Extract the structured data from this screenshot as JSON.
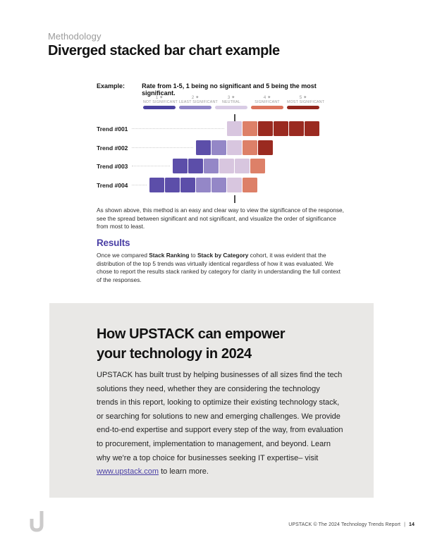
{
  "header": {
    "eyebrow": "Methodology",
    "title": "Diverged stacked bar chart example"
  },
  "chart": {
    "example_label": "Example:",
    "example_text": "Rate from 1-5, 1 being no significant and 5 being the most significant.",
    "legend": [
      {
        "number": "1",
        "symbol": "✦",
        "label": "NOT SIGNIFICANT",
        "color": "#4A41A0"
      },
      {
        "number": "2",
        "symbol": "✦",
        "label": "LEAST SIGNIFICANT",
        "color": "#8F84C6"
      },
      {
        "number": "3",
        "symbol": "✦",
        "label": "NEUTRAL",
        "color": "#D9CCE5"
      },
      {
        "number": "4",
        "symbol": "✦",
        "label": "SIGNIFICANT",
        "color": "#DB745C"
      },
      {
        "number": "5",
        "symbol": "✦",
        "label": "MOST SIGNIFICANT",
        "color": "#93261D"
      }
    ]
  },
  "chart_data": {
    "type": "bar",
    "subtype": "diverging_stacked",
    "title": "Diverged stacked bar chart example",
    "categories": [
      "Trend #001",
      "Trend #002",
      "Trend #003",
      "Trend #004"
    ],
    "series": [
      {
        "name": "1 Not Significant",
        "rating": 1,
        "color": "#5C4EA9",
        "values": [
          0,
          1,
          2,
          3
        ]
      },
      {
        "name": "2 Least Significant",
        "rating": 2,
        "color": "#9487C7",
        "values": [
          0,
          1,
          1,
          2
        ]
      },
      {
        "name": "3 Neutral",
        "rating": 3,
        "color": "#D8C6DF",
        "values": [
          1,
          1,
          2,
          1
        ]
      },
      {
        "name": "4 Significant",
        "rating": 4,
        "color": "#DD8068",
        "values": [
          1,
          1,
          1,
          1
        ]
      },
      {
        "name": "5 Most Significant",
        "rating": 5,
        "color": "#9A2A20",
        "values": [
          4,
          1,
          0,
          0
        ]
      }
    ],
    "units": "response blocks (1 block = 1 unit)",
    "legend_position": "top",
    "note": "Neutral blocks straddle the central divergence axis; ratings 1-2 extend left, ratings 4-5 extend right."
  },
  "caption": {
    "text": "As shown above, this method is an easy and clear way to view the significance of the response, see the spread between significant and not significant, and visualize the order of significance from most to least."
  },
  "results": {
    "heading": "Results",
    "p1": "Once we compared ",
    "bold1": "Stack Ranking",
    "p2": " to ",
    "bold2": "Stack by Category",
    "p3": " cohort, it was evident that the distribution of the top 5 trends was virtually identical regardless of how it was evaluated. We chose to report the results stack ranked by category for clarity in understanding the full context of the responses."
  },
  "promo": {
    "heading_line1": "How UPSTACK can empower",
    "heading_line2": "your technology in 2024",
    "p_before_link": "UPSTACK has built trust by helping businesses of all sizes find the tech solutions they need, whether they are considering the technology trends in this report, looking to optimize their existing technology stack, or searching for solutions to new and emerging challenges. We provide end-to-end expertise and support every step of the way, from evaluation to procurement, implementation to management, and beyond.  Learn why we're a top choice for businesses seeking IT expertise– visit ",
    "link_text": "www.upstack.com",
    "p_after_link": " to learn more."
  },
  "footer": {
    "report_text": "UPSTACK © The 2024 Technology Trends Report",
    "separator": "|",
    "page_number": "14",
    "logo_color": "#CCCBCB"
  }
}
